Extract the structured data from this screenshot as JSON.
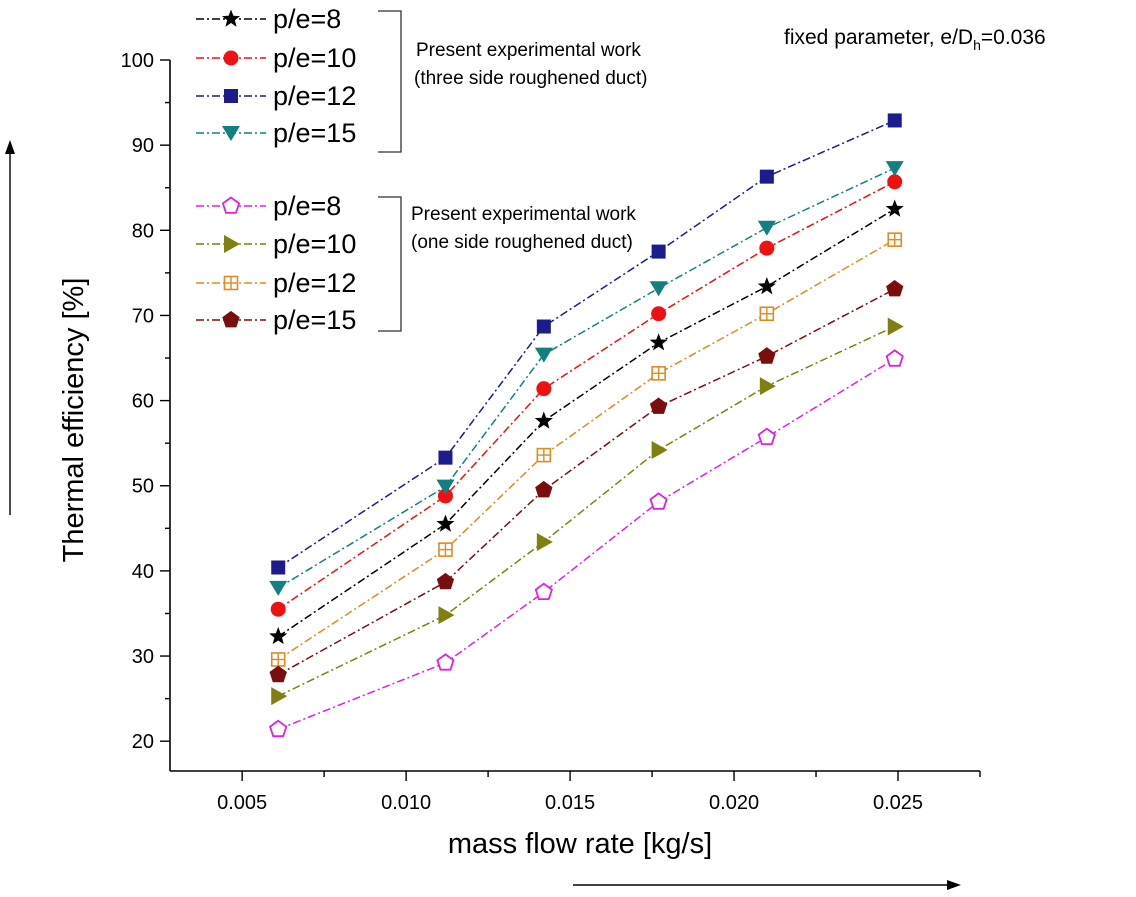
{
  "chart_data": {
    "type": "line",
    "xlabel": "mass flow rate [kg/s]",
    "ylabel": "Thermal efficiency [%]",
    "x": [
      0.0061,
      0.0112,
      0.0142,
      0.0177,
      0.021,
      0.0249
    ],
    "xlim": [
      0.0028,
      0.0275
    ],
    "ylim": [
      16.5,
      100
    ],
    "xticks": [
      0.005,
      0.01,
      0.015,
      0.02,
      0.025
    ],
    "xtick_labels": [
      "0.005",
      "0.010",
      "0.015",
      "0.020",
      "0.025"
    ],
    "yticks": [
      20,
      30,
      40,
      50,
      60,
      70,
      80,
      90,
      100
    ],
    "ytick_labels": [
      "20",
      "30",
      "40",
      "50",
      "60",
      "70",
      "80",
      "90",
      "100"
    ],
    "annotation": {
      "prefix": "fixed parameter, e/D",
      "subscript": "h",
      "suffix": "=0.036"
    },
    "groups": [
      {
        "line1": "Present experimental work",
        "line2": "(three side roughened duct)"
      },
      {
        "line1": "Present experimental work",
        "line2": "(one side roughened duct)"
      }
    ],
    "series": [
      {
        "name": "p/e=8",
        "group": 0,
        "color": "#000000",
        "marker": "star",
        "values": [
          32.3,
          45.5,
          57.6,
          66.8,
          73.4,
          82.5
        ]
      },
      {
        "name": "p/e=10",
        "group": 0,
        "color": "#ee1111",
        "marker": "circle",
        "values": [
          35.5,
          48.8,
          61.4,
          70.2,
          77.9,
          85.7
        ]
      },
      {
        "name": "p/e=12",
        "group": 0,
        "color": "#1c1c8c",
        "marker": "square",
        "values": [
          40.4,
          53.3,
          68.7,
          77.5,
          86.3,
          92.9
        ]
      },
      {
        "name": "p/e=15",
        "group": 0,
        "color": "#138080",
        "marker": "triangle-down",
        "values": [
          38.0,
          49.9,
          65.4,
          73.2,
          80.3,
          87.3
        ]
      },
      {
        "name": "p/e=8",
        "group": 1,
        "color": "#e020e0",
        "marker": "pentagon-open",
        "values": [
          21.4,
          29.2,
          37.5,
          48.1,
          55.7,
          64.9
        ]
      },
      {
        "name": "p/e=10",
        "group": 1,
        "color": "#808010",
        "marker": "triangle-right",
        "values": [
          25.3,
          34.8,
          43.4,
          54.2,
          61.7,
          68.7
        ]
      },
      {
        "name": "p/e=12",
        "group": 1,
        "color": "#e08a20",
        "marker": "square-plus",
        "values": [
          29.6,
          42.5,
          53.6,
          63.2,
          70.2,
          78.9
        ]
      },
      {
        "name": "p/e=15",
        "group": 1,
        "color": "#7a0e0e",
        "marker": "pentagon",
        "values": [
          27.8,
          38.7,
          49.5,
          59.3,
          65.2,
          73.1
        ]
      }
    ]
  }
}
